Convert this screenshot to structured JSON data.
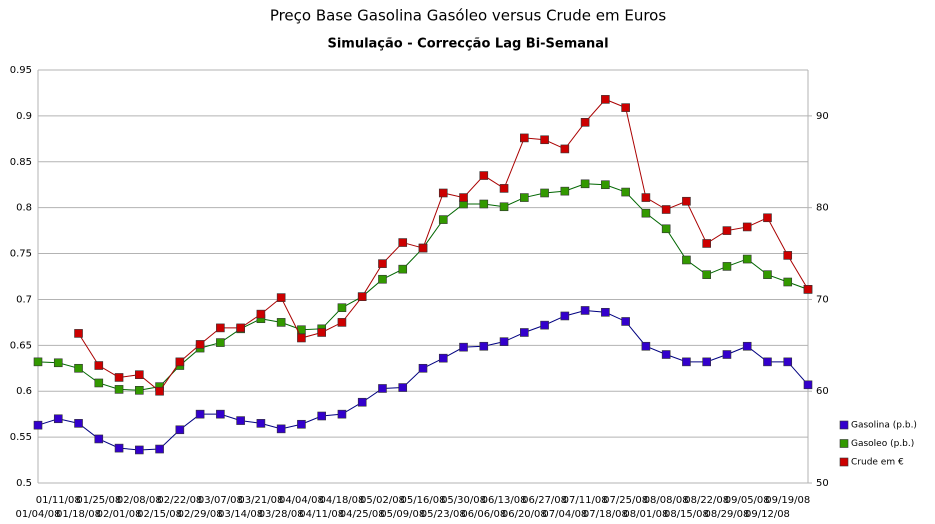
{
  "chart_data": {
    "type": "line",
    "title": "Preço Base Gasolina Gasóleo versus Crude em Euros",
    "subtitle": "Simulação - Correcção Lag Bi-Semanal",
    "categories": [
      "01/04/08",
      "01/11/08",
      "01/18/08",
      "01/25/08",
      "02/01/08",
      "02/08/08",
      "02/15/08",
      "02/22/08",
      "02/29/08",
      "03/07/08",
      "03/14/08",
      "03/21/08",
      "03/28/08",
      "04/04/08",
      "04/11/08",
      "04/18/08",
      "04/25/08",
      "05/02/08",
      "05/09/08",
      "05/16/08",
      "05/23/08",
      "05/30/08",
      "06/06/08",
      "06/13/08",
      "06/20/08",
      "06/27/08",
      "07/04/08",
      "07/11/08",
      "07/18/08",
      "07/25/08",
      "08/01/08",
      "08/08/08",
      "08/15/08",
      "08/22/08",
      "08/29/08",
      "09/05/08",
      "09/12/08",
      "09/19/08",
      null
    ],
    "series": [
      {
        "name": "Gasolina (p.b.)",
        "color": "#3300cc",
        "values": [
          0.563,
          0.57,
          0.565,
          0.548,
          0.538,
          0.536,
          0.537,
          0.558,
          0.575,
          0.575,
          0.568,
          0.565,
          0.559,
          0.564,
          0.573,
          0.575,
          0.588,
          0.603,
          0.604,
          0.625,
          0.636,
          0.648,
          0.649,
          0.654,
          0.664,
          0.672,
          0.682,
          0.688,
          0.686,
          0.676,
          0.649,
          0.64,
          0.632,
          0.632,
          0.64,
          0.649,
          0.632,
          0.632,
          0.607
        ]
      },
      {
        "name": "Gasoleo (p.b.)",
        "color": "#339900",
        "values": [
          0.632,
          0.631,
          0.625,
          0.609,
          0.602,
          0.601,
          0.605,
          0.628,
          0.647,
          0.653,
          0.668,
          0.679,
          0.675,
          0.667,
          0.668,
          0.691,
          0.703,
          0.722,
          0.733,
          0.756,
          0.787,
          0.804,
          0.804,
          0.801,
          0.811,
          0.816,
          0.818,
          0.826,
          0.825,
          0.817,
          0.794,
          0.777,
          0.743,
          0.727,
          0.736,
          0.744,
          0.727,
          0.719,
          0.711
        ]
      },
      {
        "name": "Crude em €",
        "color": "#cc0000",
        "axis": "y2",
        "values": [
          null,
          null,
          66.3,
          62.8,
          61.5,
          61.8,
          60.0,
          63.2,
          65.1,
          66.9,
          66.9,
          68.4,
          70.2,
          65.8,
          66.4,
          67.5,
          70.3,
          73.9,
          76.2,
          75.6,
          81.6,
          81.1,
          83.5,
          82.1,
          87.6,
          87.4,
          86.4,
          89.3,
          91.8,
          90.9,
          81.1,
          79.8,
          80.7,
          76.1,
          77.5,
          77.9,
          78.9,
          74.8,
          71.1
        ]
      }
    ],
    "ylim": [
      0.5,
      0.95
    ],
    "yticks": [
      0.5,
      0.55,
      0.6,
      0.65,
      0.7,
      0.75,
      0.8,
      0.85,
      0.9,
      0.95
    ],
    "y2lim": [
      50,
      95
    ],
    "y2ticks": [
      50,
      60,
      70,
      80,
      90
    ],
    "grid": true,
    "legend": "right"
  }
}
